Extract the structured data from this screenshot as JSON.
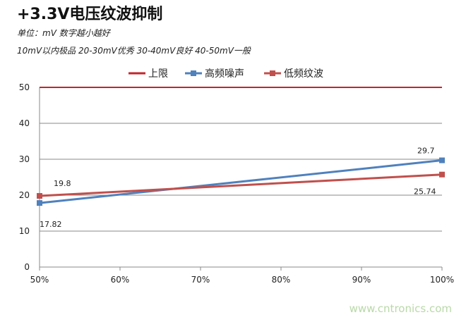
{
  "title": "+3.3V电压纹波抑制",
  "subtitle_lines": [
    "单位：mV  数字越小越好",
    "10mV以内极品  20-30mV优秀  30-40mV良好  40-50mV一般"
  ],
  "watermark": "www.cntronics.com",
  "chart_data": {
    "type": "line",
    "categories": [
      "50%",
      "100%"
    ],
    "x_ticks": [
      "50%",
      "60%",
      "70%",
      "80%",
      "90%",
      "100%"
    ],
    "x_values": [
      50,
      100
    ],
    "xlim": [
      50,
      100
    ],
    "ylim": [
      0,
      50
    ],
    "y_ticks": [
      "0",
      "10",
      "20",
      "30",
      "40",
      "50"
    ],
    "grid": true,
    "legend_position": "top",
    "series": [
      {
        "name": "上限",
        "values": [
          50,
          50
        ],
        "color": "#c0272d",
        "markers": false,
        "labels": []
      },
      {
        "name": "高频噪声",
        "values": [
          17.82,
          29.7
        ],
        "color": "#4f81bd",
        "markers": true,
        "labels": [
          "17.82",
          "29.7"
        ]
      },
      {
        "name": "低频纹波",
        "values": [
          19.8,
          25.74
        ],
        "color": "#c0504d",
        "markers": true,
        "labels": [
          "19.8",
          "25.74"
        ]
      }
    ]
  }
}
